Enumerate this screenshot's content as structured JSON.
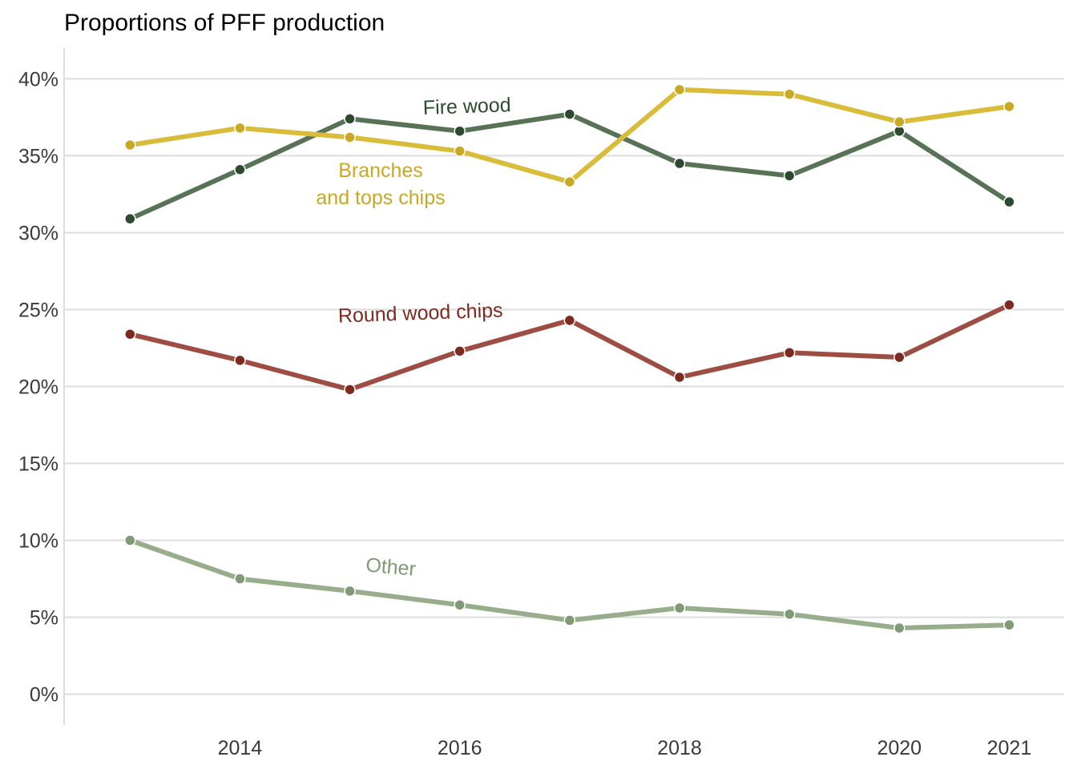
{
  "chart_data": {
    "type": "line",
    "title": "Proportions of PFF production",
    "xlabel": "",
    "ylabel": "",
    "x": [
      2013,
      2014,
      2015,
      2016,
      2017,
      2018,
      2019,
      2020,
      2021
    ],
    "x_ticks": [
      2014,
      2016,
      2018,
      2020,
      2021
    ],
    "x_tick_labels": [
      "2014",
      "2016",
      "2018",
      "2020",
      "2021"
    ],
    "xlim": [
      2012.4,
      2021.5
    ],
    "y_ticks": [
      0,
      5,
      10,
      15,
      20,
      25,
      30,
      35,
      40
    ],
    "y_tick_labels": [
      "0%",
      "5%",
      "10%",
      "15%",
      "20%",
      "25%",
      "30%",
      "35%",
      "40%"
    ],
    "ylim": [
      -2,
      42
    ],
    "grid": "horizontal",
    "legend": "none (direct labels)",
    "series": [
      {
        "name": "Fire wood",
        "label": "Fire wood",
        "line_color": "#577256",
        "point_color": "#2e4a2d",
        "values": [
          30.9,
          34.1,
          37.4,
          36.6,
          37.7,
          34.5,
          33.7,
          36.6,
          32.0
        ]
      },
      {
        "name": "Branches and tops chips",
        "label_lines": [
          "Branches",
          "and tops chips"
        ],
        "line_color": "#d8bc3a",
        "point_color": "#c9a825",
        "values": [
          35.7,
          36.8,
          36.2,
          35.3,
          33.3,
          39.3,
          39.0,
          37.2,
          38.2
        ]
      },
      {
        "name": "Round wood chips",
        "label": "Round wood chips",
        "line_color": "#9e4d42",
        "point_color": "#7e2a20",
        "values": [
          23.4,
          21.7,
          19.8,
          22.3,
          24.3,
          20.6,
          22.2,
          21.9,
          25.3
        ]
      },
      {
        "name": "Other",
        "label": "Other",
        "line_color": "#97ad8c",
        "point_color": "#7f9a74",
        "values": [
          10.0,
          7.5,
          6.7,
          5.8,
          4.8,
          5.6,
          5.2,
          4.3,
          4.5
        ]
      }
    ]
  }
}
